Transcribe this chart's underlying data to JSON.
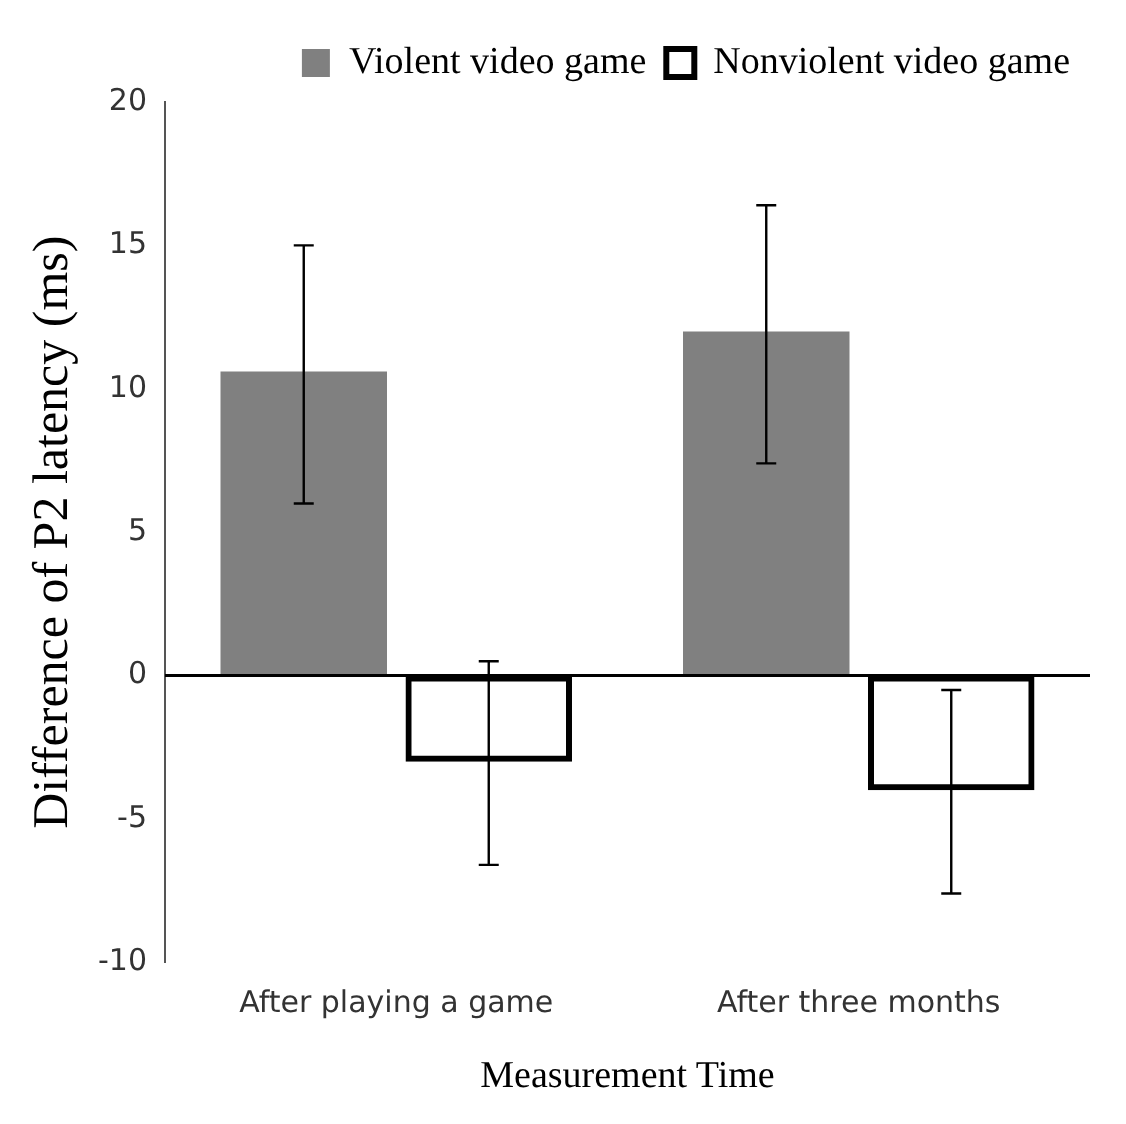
{
  "chart_data": {
    "type": "bar",
    "xlabel": "Measurement Time",
    "ylabel": "Difference of P2 latency (ms)",
    "categories": [
      "After playing a game",
      "After three months"
    ],
    "series": [
      {
        "name": "Violent video game",
        "color": "#808080",
        "values": [
          10.6,
          12.0
        ],
        "errors": [
          [
            6,
            15
          ],
          [
            7.4,
            16.4
          ]
        ]
      },
      {
        "name": "Nonviolent video game",
        "color": "#000000",
        "values": [
          -3.0,
          -4.0
        ],
        "errors": [
          [
            -6.6,
            0.5
          ],
          [
            -7.6,
            -0.5
          ]
        ]
      }
    ],
    "ylim": [
      -10,
      20
    ],
    "yticks": [
      -10,
      -5,
      0,
      5,
      10,
      15,
      20
    ],
    "ref_lines": [
      {
        "axis": "y",
        "value": 0,
        "color": "#000000"
      }
    ],
    "grid": false,
    "legend": "top right"
  }
}
